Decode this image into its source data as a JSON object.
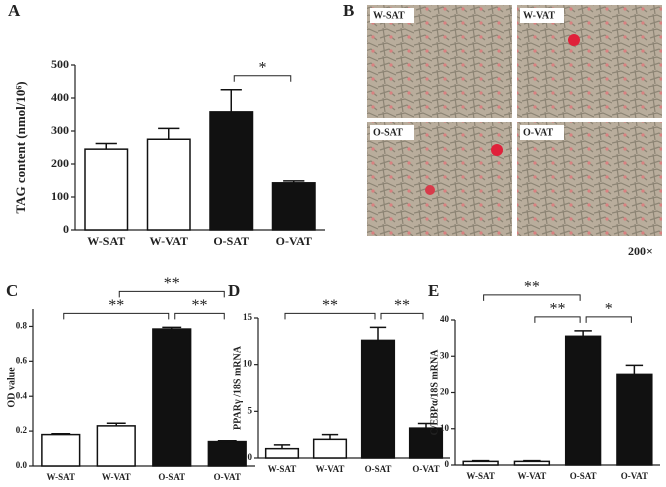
{
  "chart_data": [
    {
      "type": "bar",
      "panel": "A",
      "y_label": "TAG content (nmol/10⁶)",
      "categories": [
        "W-SAT",
        "W-VAT",
        "O-SAT",
        "O-VAT"
      ],
      "values": [
        245,
        275,
        358,
        143
      ],
      "errors": [
        17,
        33,
        67,
        6
      ],
      "colors": [
        "#ffffff",
        "#ffffff",
        "#111111",
        "#111111"
      ],
      "ylim": [
        0,
        500
      ],
      "yticks": [
        0,
        100,
        200,
        300,
        400,
        500
      ],
      "brackets": [
        {
          "from": 2,
          "to": 3,
          "label": "*"
        }
      ]
    },
    {
      "type": "bar",
      "panel": "C",
      "y_label": "OD value",
      "categories": [
        "W-SAT",
        "W-VAT",
        "O-SAT",
        "O-VAT"
      ],
      "values": [
        0.18,
        0.23,
        0.785,
        0.14
      ],
      "errors": [
        0.005,
        0.015,
        0.01,
        0.005
      ],
      "colors": [
        "#ffffff",
        "#ffffff",
        "#111111",
        "#111111"
      ],
      "ylim": [
        0,
        0.9
      ],
      "yticks": [
        {
          "value": 0,
          "label": "0.0"
        },
        0.2,
        0.4,
        0.6,
        0.8
      ],
      "brackets": [
        {
          "from": 0,
          "to": 2,
          "label": "**"
        },
        {
          "from": 2,
          "to": 3,
          "label": "**"
        },
        {
          "from": 1,
          "to": 3,
          "label": "**"
        }
      ]
    },
    {
      "type": "bar",
      "panel": "D",
      "y_label": "PPARγ /18S mRNA",
      "categories": [
        "W-SAT",
        "W-VAT",
        "O-SAT",
        "O-VAT"
      ],
      "values": [
        1.0,
        2.0,
        12.6,
        3.2
      ],
      "errors": [
        0.4,
        0.5,
        1.4,
        0.5
      ],
      "colors": [
        "#ffffff",
        "#ffffff",
        "#111111",
        "#111111"
      ],
      "ylim": [
        0,
        15
      ],
      "yticks": [
        0,
        5,
        10,
        15
      ],
      "brackets": [
        {
          "from": 0,
          "to": 2,
          "label": "**"
        },
        {
          "from": 2,
          "to": 3,
          "label": "**"
        }
      ]
    },
    {
      "type": "bar",
      "panel": "E",
      "y_label": "C/EBPα/18S mRNA",
      "categories": [
        "W-SAT",
        "W-VAT",
        "O-SAT",
        "O-VAT"
      ],
      "values": [
        1.0,
        1.0,
        35.5,
        25
      ],
      "errors": [
        0.2,
        0.2,
        1.5,
        2.5
      ],
      "colors": [
        "#ffffff",
        "#ffffff",
        "#111111",
        "#111111"
      ],
      "ylim": [
        0,
        40
      ],
      "yticks": [
        0,
        10,
        20,
        30,
        40
      ],
      "brackets": [
        {
          "from": 1,
          "to": 2,
          "label": "**"
        },
        {
          "from": 2,
          "to": 3,
          "label": "*"
        },
        {
          "from": 0,
          "to": 2,
          "label": "**"
        }
      ]
    }
  ],
  "panel_b": {
    "panel": "B",
    "images": [
      {
        "label": "W-SAT"
      },
      {
        "label": "W-VAT"
      },
      {
        "label": "O-SAT"
      },
      {
        "label": "O-VAT"
      }
    ],
    "magnification": "200×"
  }
}
